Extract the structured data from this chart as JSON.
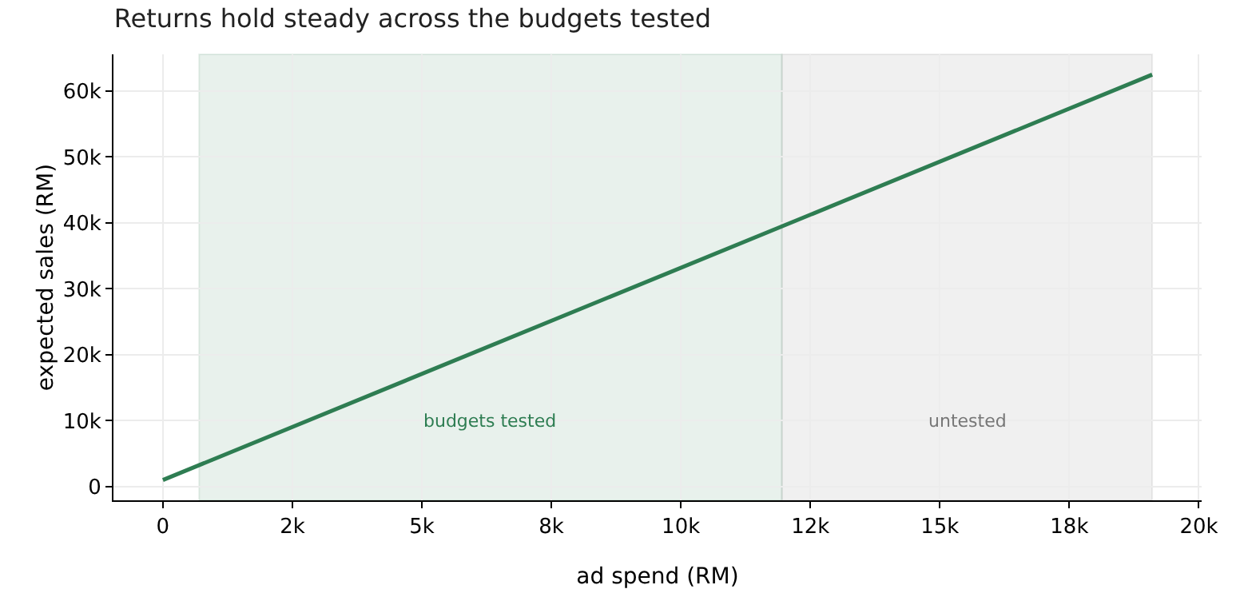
{
  "chart_data": {
    "type": "line",
    "title": "Returns hold steady across the budgets tested",
    "xlabel": "ad spend (RM)",
    "ylabel": "expected sales (RM)",
    "x": [
      0,
      19100
    ],
    "series": [
      {
        "color": "#2e7d52",
        "values": [
          1000,
          62500
        ]
      }
    ],
    "xlim": [
      -955,
      20055
    ],
    "xticks": [
      0,
      {
        "value": 2500,
        "label": "2k"
      },
      {
        "value": 5000,
        "label": "5k"
      },
      {
        "value": 7500,
        "label": "8k"
      },
      {
        "value": 10000,
        "label": "10k"
      },
      {
        "value": 12500,
        "label": "12k"
      },
      {
        "value": 15000,
        "label": "15k"
      },
      {
        "value": 17500,
        "label": "18k"
      },
      {
        "value": 20000,
        "label": "20k"
      }
    ],
    "ylim": [
      -2075,
      65575
    ],
    "yticks": [
      0,
      {
        "value": 10000,
        "label": "10k"
      },
      {
        "value": 20000,
        "label": "20k"
      },
      {
        "value": 30000,
        "label": "30k"
      },
      {
        "value": 40000,
        "label": "40k"
      },
      {
        "value": 50000,
        "label": "50k"
      },
      {
        "value": 60000,
        "label": "60k"
      }
    ],
    "bands": [
      {
        "axis": "x",
        "from": 700,
        "to": 11950,
        "label": "budgets tested",
        "color": "#2e7d52"
      },
      {
        "axis": "x",
        "from": 11950,
        "to": 19100,
        "label": "untested",
        "color": "#777777"
      }
    ],
    "grid": true,
    "marker": "none",
    "line_style": "solid"
  }
}
